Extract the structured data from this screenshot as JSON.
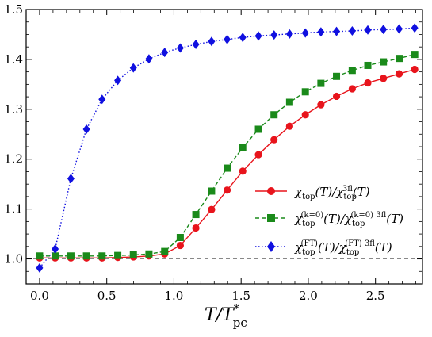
{
  "chart_data": {
    "type": "line",
    "xlabel": "T/T*pc",
    "ylabel": "",
    "xlim": [
      -0.1,
      2.85
    ],
    "ylim": [
      0.95,
      1.5
    ],
    "x_ticks": [
      0.0,
      0.5,
      1.0,
      1.5,
      2.0,
      2.5
    ],
    "x_tick_labels": [
      "0.0",
      "0.5",
      "1.0",
      "1.5",
      "2.0",
      "2.5"
    ],
    "y_ticks": [
      1.0,
      1.1,
      1.2,
      1.3,
      1.4,
      1.5
    ],
    "y_tick_labels": [
      "1.0",
      "1.1",
      "1.2",
      "1.3",
      "1.4",
      "1.5"
    ],
    "reference_line": {
      "y": 1.0,
      "style": "dashed",
      "color": "#888888"
    },
    "legend_position": "right",
    "series": [
      {
        "name": "χtop(T)/χtop3fl(T)",
        "color": "#e8141c",
        "marker": "circle",
        "line_style": "solid",
        "x": [
          0.0,
          0.116,
          0.233,
          0.349,
          0.465,
          0.582,
          0.698,
          0.814,
          0.931,
          1.047,
          1.163,
          1.28,
          1.396,
          1.512,
          1.629,
          1.745,
          1.861,
          1.978,
          2.094,
          2.21,
          2.327,
          2.443,
          2.559,
          2.676,
          2.792
        ],
        "y": [
          1.002,
          1.002,
          1.002,
          1.002,
          1.002,
          1.003,
          1.004,
          1.006,
          1.01,
          1.027,
          1.062,
          1.099,
          1.138,
          1.176,
          1.209,
          1.239,
          1.266,
          1.289,
          1.309,
          1.326,
          1.341,
          1.353,
          1.362,
          1.371,
          1.38
        ]
      },
      {
        "name": "χtop(k=0)(T)/χtop(k=0)3fl(T)",
        "color": "#1a8a1a",
        "marker": "square",
        "line_style": "dashed",
        "x": [
          0.0,
          0.116,
          0.233,
          0.349,
          0.465,
          0.582,
          0.698,
          0.814,
          0.931,
          1.047,
          1.163,
          1.28,
          1.396,
          1.512,
          1.629,
          1.745,
          1.861,
          1.978,
          2.094,
          2.21,
          2.327,
          2.443,
          2.559,
          2.676,
          2.792
        ],
        "y": [
          1.006,
          1.006,
          1.006,
          1.006,
          1.006,
          1.007,
          1.008,
          1.01,
          1.015,
          1.043,
          1.089,
          1.136,
          1.182,
          1.223,
          1.26,
          1.289,
          1.314,
          1.335,
          1.352,
          1.366,
          1.378,
          1.388,
          1.395,
          1.402,
          1.41
        ]
      },
      {
        "name": "χtop(FT)(T)/χtop(FT)3fl(T)",
        "color": "#1010e0",
        "marker": "diamond",
        "line_style": "dotted",
        "x": [
          0.0,
          0.116,
          0.233,
          0.349,
          0.465,
          0.582,
          0.698,
          0.814,
          0.931,
          1.047,
          1.163,
          1.28,
          1.396,
          1.512,
          1.629,
          1.745,
          1.861,
          1.978,
          2.094,
          2.21,
          2.327,
          2.443,
          2.559,
          2.676,
          2.792
        ],
        "y": [
          0.982,
          1.02,
          1.161,
          1.26,
          1.32,
          1.358,
          1.383,
          1.401,
          1.414,
          1.423,
          1.43,
          1.436,
          1.44,
          1.444,
          1.447,
          1.449,
          1.451,
          1.453,
          1.455,
          1.456,
          1.457,
          1.459,
          1.46,
          1.461,
          1.463
        ]
      }
    ]
  }
}
